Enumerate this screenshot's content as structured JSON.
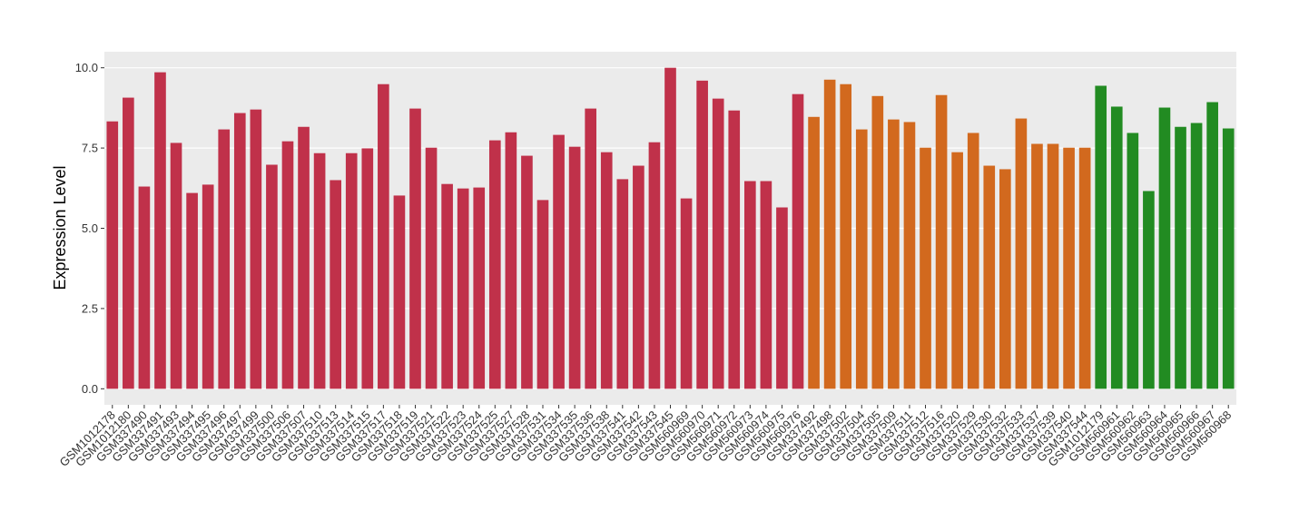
{
  "chart_data": {
    "type": "bar",
    "y_label": "Expression Level",
    "categories": [
      "GSM1012178",
      "GSM1012180",
      "GSM337490",
      "GSM337491",
      "GSM337493",
      "GSM337494",
      "GSM337495",
      "GSM337496",
      "GSM337497",
      "GSM337499",
      "GSM337500",
      "GSM337506",
      "GSM337507",
      "GSM337510",
      "GSM337513",
      "GSM337514",
      "GSM337515",
      "GSM337517",
      "GSM337518",
      "GSM337519",
      "GSM337521",
      "GSM337522",
      "GSM337523",
      "GSM337524",
      "GSM337525",
      "GSM337527",
      "GSM337528",
      "GSM337531",
      "GSM337534",
      "GSM337535",
      "GSM337536",
      "GSM337538",
      "GSM337541",
      "GSM337542",
      "GSM337543",
      "GSM337545",
      "GSM560969",
      "GSM560970",
      "GSM560971",
      "GSM560972",
      "GSM560973",
      "GSM560974",
      "GSM560975",
      "GSM560976",
      "GSM337492",
      "GSM337498",
      "GSM337502",
      "GSM337504",
      "GSM337505",
      "GSM337509",
      "GSM337511",
      "GSM337512",
      "GSM337516",
      "GSM337520",
      "GSM337529",
      "GSM337530",
      "GSM337532",
      "GSM337533",
      "GSM337537",
      "GSM337539",
      "GSM337540",
      "GSM337544",
      "GSM1012179",
      "GSM560961",
      "GSM560962",
      "GSM560963",
      "GSM560964",
      "GSM560965",
      "GSM560966",
      "GSM560967",
      "GSM560968"
    ],
    "values": [
      8.33,
      9.07,
      6.3,
      9.86,
      7.66,
      6.1,
      6.36,
      8.08,
      8.59,
      8.7,
      6.98,
      7.71,
      8.16,
      7.34,
      6.5,
      7.34,
      7.49,
      9.49,
      6.02,
      8.73,
      7.51,
      6.38,
      6.24,
      6.27,
      7.74,
      7.99,
      7.26,
      5.88,
      7.91,
      7.54,
      8.73,
      7.37,
      6.53,
      6.95,
      7.68,
      10.0,
      5.93,
      9.6,
      9.04,
      8.67,
      6.47,
      6.47,
      5.65,
      9.18,
      8.47,
      9.63,
      9.49,
      8.08,
      9.12,
      8.39,
      8.31,
      7.51,
      9.15,
      7.37,
      7.97,
      6.95,
      6.84,
      8.42,
      7.63,
      7.63,
      7.51,
      7.51,
      9.44,
      8.79,
      7.97,
      6.16,
      8.76,
      8.16,
      8.28,
      8.93,
      8.11
    ],
    "colors": [
      "#c0314a",
      "#c0314a",
      "#c0314a",
      "#c0314a",
      "#c0314a",
      "#c0314a",
      "#c0314a",
      "#c0314a",
      "#c0314a",
      "#c0314a",
      "#c0314a",
      "#c0314a",
      "#c0314a",
      "#c0314a",
      "#c0314a",
      "#c0314a",
      "#c0314a",
      "#c0314a",
      "#c0314a",
      "#c0314a",
      "#c0314a",
      "#c0314a",
      "#c0314a",
      "#c0314a",
      "#c0314a",
      "#c0314a",
      "#c0314a",
      "#c0314a",
      "#c0314a",
      "#c0314a",
      "#c0314a",
      "#c0314a",
      "#c0314a",
      "#c0314a",
      "#c0314a",
      "#c0314a",
      "#c0314a",
      "#c0314a",
      "#c0314a",
      "#c0314a",
      "#c0314a",
      "#c0314a",
      "#c0314a",
      "#c0314a",
      "#d2691e",
      "#d2691e",
      "#d2691e",
      "#d2691e",
      "#d2691e",
      "#d2691e",
      "#d2691e",
      "#d2691e",
      "#d2691e",
      "#d2691e",
      "#d2691e",
      "#d2691e",
      "#d2691e",
      "#d2691e",
      "#d2691e",
      "#d2691e",
      "#d2691e",
      "#d2691e",
      "#228b22",
      "#228b22",
      "#228b22",
      "#228b22",
      "#228b22",
      "#228b22",
      "#228b22",
      "#228b22",
      "#228b22"
    ],
    "ylim": [
      -0.5,
      10.5
    ],
    "yticks": [
      {
        "value": 0,
        "label": "0.0"
      },
      {
        "value": 2.5,
        "label": "2.5"
      },
      {
        "value": 5,
        "label": "5.0"
      },
      {
        "value": 7.5,
        "label": "7.5"
      },
      {
        "value": 10,
        "label": "10.0"
      }
    ],
    "grid": true
  }
}
